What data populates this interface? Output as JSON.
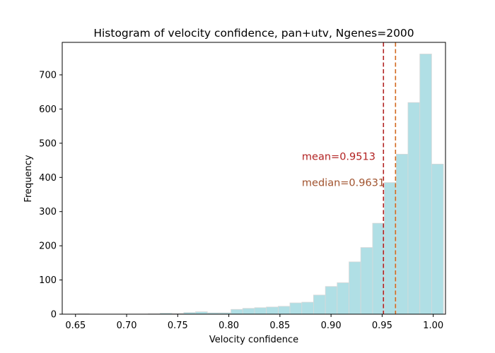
{
  "chart_data": {
    "type": "histogram",
    "title": "Histogram of velocity confidence, pan+utv, Ngenes=2000",
    "xlabel": "Velocity confidence",
    "ylabel": "Frequency",
    "xlim": [
      0.637,
      1.012
    ],
    "ylim": [
      0,
      795
    ],
    "xticks": [
      0.65,
      0.7,
      0.75,
      0.8,
      0.85,
      0.9,
      0.95,
      1.0
    ],
    "xtick_labels": [
      "0.65",
      "0.70",
      "0.75",
      "0.80",
      "0.85",
      "0.90",
      "0.95",
      "1.00"
    ],
    "yticks": [
      0,
      100,
      200,
      300,
      400,
      500,
      600,
      700
    ],
    "ytick_labels": [
      "0",
      "100",
      "200",
      "300",
      "400",
      "500",
      "600",
      "700"
    ],
    "bar_color": "#b0dfe5",
    "bar_edge_color": "#d8d8d8",
    "bins": [
      {
        "x0": 0.6519,
        "x1": 0.6635,
        "count": 1
      },
      {
        "x0": 0.6635,
        "x1": 0.675,
        "count": 0
      },
      {
        "x0": 0.675,
        "x1": 0.6866,
        "count": 0
      },
      {
        "x0": 0.6866,
        "x1": 0.6981,
        "count": 0
      },
      {
        "x0": 0.6981,
        "x1": 0.7097,
        "count": 0
      },
      {
        "x0": 0.7097,
        "x1": 0.7212,
        "count": 0
      },
      {
        "x0": 0.7212,
        "x1": 0.7328,
        "count": 1
      },
      {
        "x0": 0.7328,
        "x1": 0.7443,
        "count": 3
      },
      {
        "x0": 0.7443,
        "x1": 0.7559,
        "count": 2
      },
      {
        "x0": 0.7559,
        "x1": 0.7674,
        "count": 5
      },
      {
        "x0": 0.7674,
        "x1": 0.779,
        "count": 7
      },
      {
        "x0": 0.779,
        "x1": 0.7905,
        "count": 4
      },
      {
        "x0": 0.7905,
        "x1": 0.8021,
        "count": 4
      },
      {
        "x0": 0.8021,
        "x1": 0.8136,
        "count": 14
      },
      {
        "x0": 0.8136,
        "x1": 0.8252,
        "count": 17
      },
      {
        "x0": 0.8252,
        "x1": 0.8367,
        "count": 19
      },
      {
        "x0": 0.8367,
        "x1": 0.8483,
        "count": 21
      },
      {
        "x0": 0.8483,
        "x1": 0.8598,
        "count": 23
      },
      {
        "x0": 0.8598,
        "x1": 0.8714,
        "count": 33
      },
      {
        "x0": 0.8714,
        "x1": 0.8829,
        "count": 35
      },
      {
        "x0": 0.8829,
        "x1": 0.8945,
        "count": 56
      },
      {
        "x0": 0.8945,
        "x1": 0.906,
        "count": 81
      },
      {
        "x0": 0.906,
        "x1": 0.9176,
        "count": 92
      },
      {
        "x0": 0.9176,
        "x1": 0.9291,
        "count": 153
      },
      {
        "x0": 0.9291,
        "x1": 0.9407,
        "count": 195
      },
      {
        "x0": 0.9407,
        "x1": 0.9522,
        "count": 266
      },
      {
        "x0": 0.9522,
        "x1": 0.9638,
        "count": 385
      },
      {
        "x0": 0.9638,
        "x1": 0.9753,
        "count": 468
      },
      {
        "x0": 0.9753,
        "x1": 0.9869,
        "count": 619
      },
      {
        "x0": 0.9869,
        "x1": 0.9984,
        "count": 761
      },
      {
        "x0": 0.9984,
        "x1": 1.01,
        "count": 439
      }
    ],
    "reference_lines": [
      {
        "name": "mean",
        "value": 0.9513,
        "color": "#b22222",
        "label": "mean=0.9513",
        "label_x": 0.8715,
        "label_y": 462
      },
      {
        "name": "median",
        "value": 0.9631,
        "color": "#d2691e",
        "label": "median=0.9631",
        "label_x": 0.8715,
        "label_y": 385
      }
    ],
    "annotation_colors": {
      "mean": "#b22222",
      "median": "#a0522d"
    },
    "grid": false,
    "legend": "none"
  }
}
